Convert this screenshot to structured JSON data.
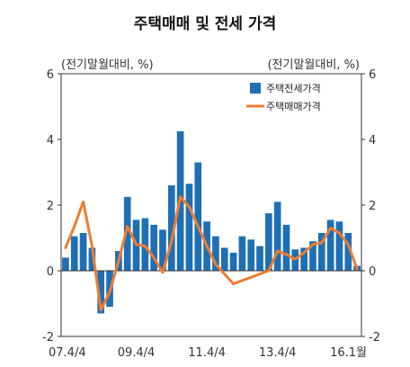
{
  "chart_data": {
    "type": "bar",
    "title": "주택매매 및 전세 가격",
    "ylabel_left": "(전기말월대비, %)",
    "ylabel_right": "(전기말월대비, %)",
    "ylim": [
      -2,
      6
    ],
    "yticks": [
      -2,
      0,
      2,
      4,
      6
    ],
    "ytick_labels_left": [
      "-2",
      "0",
      "2",
      "4",
      "6"
    ],
    "ytick_labels_right": [
      "-2",
      "0",
      "2",
      "4",
      "6"
    ],
    "x": [
      "07.4/4",
      "08.1/4",
      "08.2/4",
      "08.3/4",
      "08.4/4",
      "09.1/4",
      "09.2/4",
      "09.3/4",
      "09.4/4",
      "10.1/4",
      "10.2/4",
      "10.3/4",
      "10.4/4",
      "11.1/4",
      "11.2/4",
      "11.3/4",
      "11.4/4",
      "12.1/4",
      "12.2/4",
      "12.3/4",
      "12.4/4",
      "13.1/4",
      "13.2/4",
      "13.3/4",
      "13.4/4",
      "14.1/4",
      "14.2/4",
      "14.3/4",
      "14.4/4",
      "15.1/4",
      "15.2/4",
      "15.3/4",
      "15.4/4",
      "16.1월"
    ],
    "xtick_labels": [
      {
        "index": 0,
        "label": "07.4/4"
      },
      {
        "index": 8,
        "label": "09.4/4"
      },
      {
        "index": 16,
        "label": "11.4/4"
      },
      {
        "index": 24,
        "label": "13.4/4"
      },
      {
        "index": 33,
        "label": "16.1월"
      }
    ],
    "legend_position": "top-right",
    "series": [
      {
        "name": "주택전세가격",
        "kind": "bar",
        "color": "#1f6fb5",
        "values": [
          0.4,
          1.05,
          1.15,
          0.7,
          -1.3,
          -1.1,
          0.6,
          2.25,
          1.55,
          1.6,
          1.4,
          1.25,
          2.6,
          4.25,
          2.65,
          3.3,
          1.5,
          1.05,
          0.7,
          0.55,
          1.05,
          0.95,
          0.75,
          1.75,
          2.1,
          1.4,
          0.65,
          0.7,
          0.9,
          1.15,
          1.55,
          1.5,
          1.15,
          0.15
        ]
      },
      {
        "name": "주택매매가격",
        "kind": "line",
        "color": "#ee7d31",
        "values": [
          0.7,
          1.35,
          2.1,
          0.75,
          -1.2,
          -0.65,
          0.3,
          1.35,
          0.8,
          0.75,
          0.4,
          -0.05,
          0.9,
          2.25,
          1.95,
          1.35,
          0.75,
          0.2,
          -0.1,
          -0.4,
          -0.3,
          -0.2,
          -0.1,
          0.0,
          0.6,
          0.5,
          0.35,
          0.55,
          0.8,
          0.85,
          1.3,
          1.15,
          0.8,
          0.05
        ]
      }
    ]
  }
}
